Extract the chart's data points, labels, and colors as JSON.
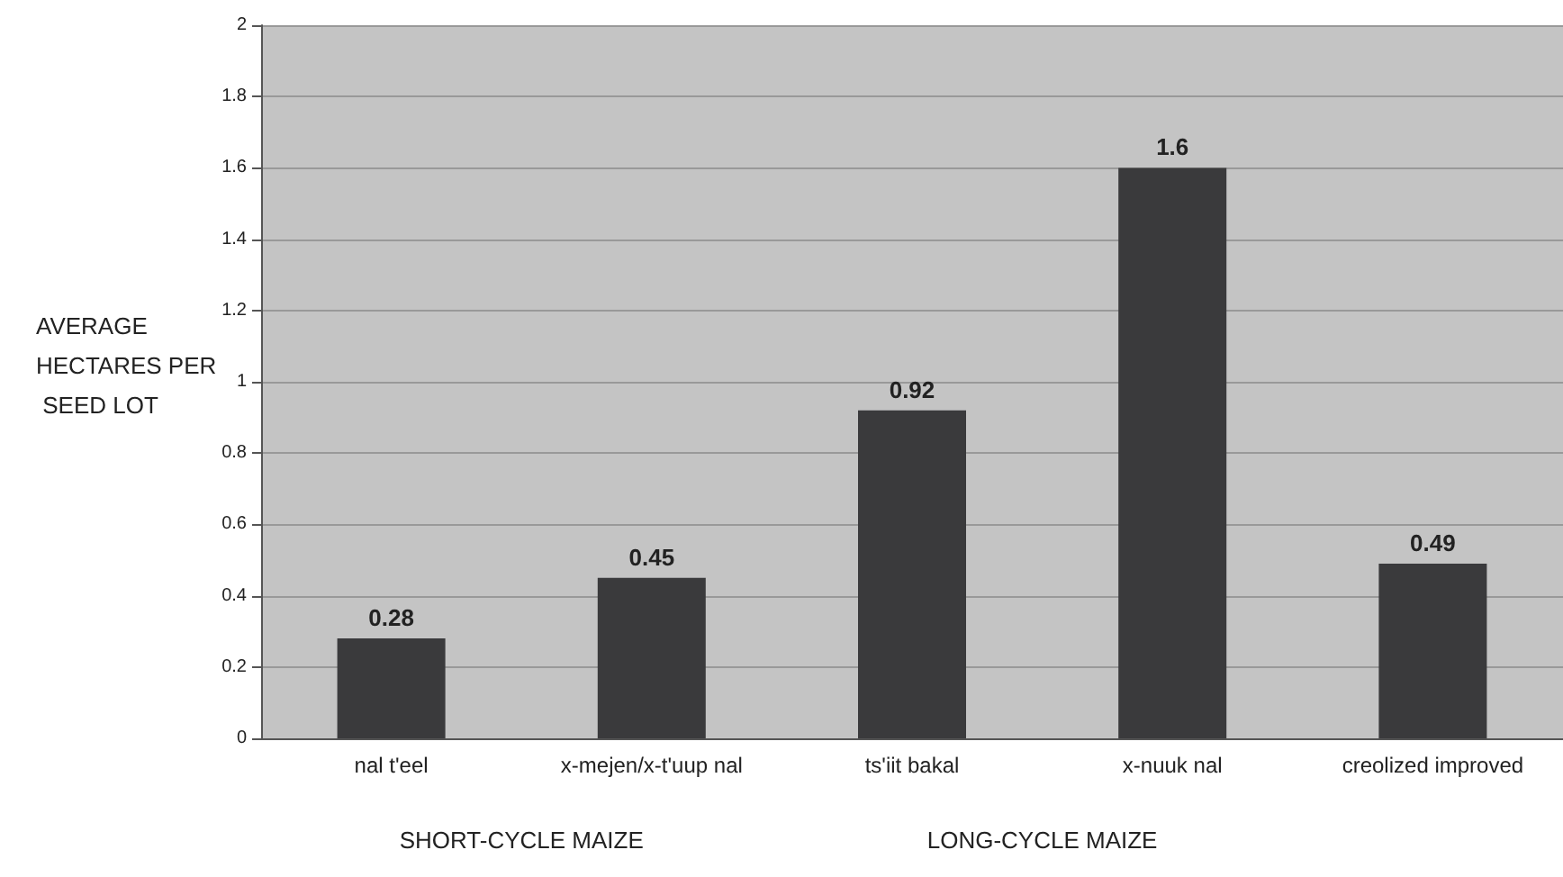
{
  "chart_data": {
    "type": "bar",
    "ylabel": "AVERAGE HECTARES PER SEED LOT",
    "categories": [
      "nal t'eel",
      "x-mejen/x-t'uup nal",
      "ts'iit bakal",
      "x-nuuk nal",
      "creolized improved"
    ],
    "values": [
      0.28,
      0.45,
      0.92,
      1.6,
      0.49
    ],
    "color": "#3a3a3c",
    "ylim": [
      0,
      2
    ],
    "yticks": [
      0,
      0.2,
      0.4,
      0.6,
      0.8,
      1,
      1.2,
      1.4,
      1.6,
      1.8,
      2
    ],
    "grid": "y",
    "data_labels": true,
    "annotations": [
      "SHORT-CYCLE MAIZE",
      "LONG-CYCLE MAIZE"
    ]
  }
}
